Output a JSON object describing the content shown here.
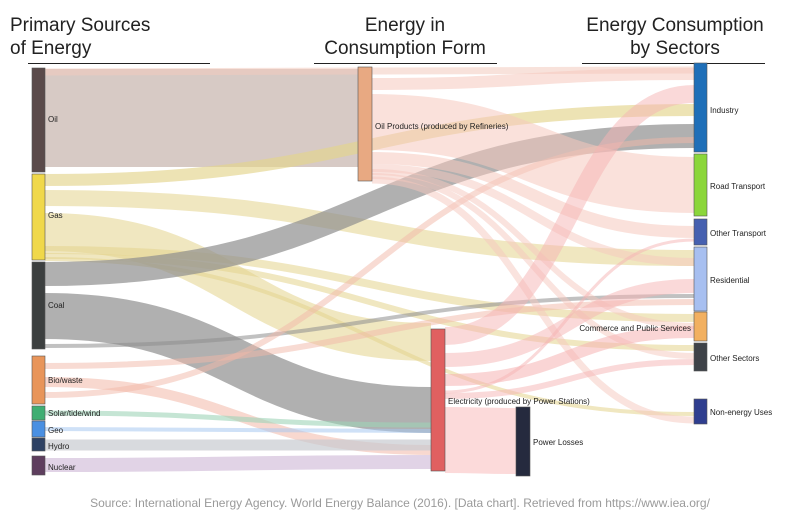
{
  "headers": {
    "primary": [
      "Primary Sources",
      "of Energy"
    ],
    "form": [
      "Energy in",
      "Consumption Form"
    ],
    "sectors": [
      "Energy Consumption",
      "by Sectors"
    ]
  },
  "nodes": [
    {
      "id": "oil",
      "label": "Oil",
      "color": "#5a4a4a",
      "column": 0
    },
    {
      "id": "gas",
      "label": "Gas",
      "color": "#f0d84a",
      "column": 0
    },
    {
      "id": "coal",
      "label": "Coal",
      "color": "#3c3f3f",
      "column": 0
    },
    {
      "id": "biowaste",
      "label": "Bio/waste",
      "color": "#e8955a",
      "column": 0
    },
    {
      "id": "solar",
      "label": "Solar/tide/wind",
      "color": "#3fae72",
      "column": 0
    },
    {
      "id": "geo",
      "label": "Geo",
      "color": "#4a90e2",
      "column": 0
    },
    {
      "id": "hydro",
      "label": "Hydro",
      "color": "#2d4163",
      "column": 0
    },
    {
      "id": "nuclear",
      "label": "Nuclear",
      "color": "#5e3e5e",
      "column": 0
    },
    {
      "id": "oilproducts",
      "label": "Oil Products (produced by Refineries)",
      "color": "#e8a982",
      "column": 1
    },
    {
      "id": "electricity",
      "label": "Electricity (produced by Power Stations)",
      "color": "#e06060",
      "column": 1
    },
    {
      "id": "losses",
      "label": "Power Losses",
      "color": "#252a3e",
      "column": 2
    },
    {
      "id": "industry",
      "label": "Industry",
      "color": "#1f6fb8",
      "column": 3
    },
    {
      "id": "road",
      "label": "Road Transport",
      "color": "#8bd63a",
      "column": 3
    },
    {
      "id": "othertransport",
      "label": "Other Transport",
      "color": "#4660b0",
      "column": 3
    },
    {
      "id": "residential",
      "label": "Residential",
      "color": "#a7bff0",
      "column": 3
    },
    {
      "id": "commerce",
      "label": "Commerce and Public Services",
      "color": "#f2b060",
      "column": 3
    },
    {
      "id": "othersectors",
      "label": "Other Sectors",
      "color": "#3e4248",
      "column": 3
    },
    {
      "id": "nonenergy",
      "label": "Non-energy Uses",
      "color": "#2f3e8f",
      "column": 3
    }
  ],
  "flows": [
    {
      "source": "oil",
      "target": "oilproducts",
      "color": "#c9b8b2"
    },
    {
      "source": "oil",
      "target": "industry",
      "color": "#f2cbbd"
    },
    {
      "source": "gas",
      "target": "industry",
      "color": "#e3d48c"
    },
    {
      "source": "gas",
      "target": "electricity",
      "color": "#e3d48c"
    },
    {
      "source": "gas",
      "target": "residential",
      "color": "#e3d48c"
    },
    {
      "source": "gas",
      "target": "commerce",
      "color": "#e3d48c"
    },
    {
      "source": "gas",
      "target": "othersectors",
      "color": "#e3d48c"
    },
    {
      "source": "gas",
      "target": "nonenergy",
      "color": "#e3d48c"
    },
    {
      "source": "coal",
      "target": "industry",
      "color": "#8e8e8e"
    },
    {
      "source": "coal",
      "target": "electricity",
      "color": "#8e8e8e"
    },
    {
      "source": "coal",
      "target": "residential",
      "color": "#8e8e8e"
    },
    {
      "source": "biowaste",
      "target": "electricity",
      "color": "#f2b8a8"
    },
    {
      "source": "biowaste",
      "target": "residential",
      "color": "#f2b8a8"
    },
    {
      "source": "biowaste",
      "target": "industry",
      "color": "#f2b8a8"
    },
    {
      "source": "solar",
      "target": "electricity",
      "color": "#9ed4b8"
    },
    {
      "source": "geo",
      "target": "electricity",
      "color": "#a8c8f0"
    },
    {
      "source": "hydro",
      "target": "electricity",
      "color": "#c8cad0"
    },
    {
      "source": "nuclear",
      "target": "electricity",
      "color": "#d4c0dc"
    },
    {
      "source": "oilproducts",
      "target": "industry",
      "color": "#f6c8be"
    },
    {
      "source": "oilproducts",
      "target": "road",
      "color": "#f6c8be"
    },
    {
      "source": "oilproducts",
      "target": "othertransport",
      "color": "#f6c8be"
    },
    {
      "source": "oilproducts",
      "target": "residential",
      "color": "#f6c8be"
    },
    {
      "source": "oilproducts",
      "target": "commerce",
      "color": "#f6c8be"
    },
    {
      "source": "oilproducts",
      "target": "othersectors",
      "color": "#f6c8be"
    },
    {
      "source": "oilproducts",
      "target": "nonenergy",
      "color": "#f6c8be"
    },
    {
      "source": "electricity",
      "target": "losses",
      "color": "#fbd3d3"
    },
    {
      "source": "electricity",
      "target": "industry",
      "color": "#f6b3b3"
    },
    {
      "source": "electricity",
      "target": "residential",
      "color": "#f6b3b3"
    },
    {
      "source": "electricity",
      "target": "commerce",
      "color": "#f6b3b3"
    },
    {
      "source": "electricity",
      "target": "othertransport",
      "color": "#f6b3b3"
    },
    {
      "source": "electricity",
      "target": "othersectors",
      "color": "#f6b3b3"
    }
  ],
  "source_note": "Source: International Energy Agency. World Energy Balance (2016). [Data chart]. Retrieved from https://www.iea.org/"
}
